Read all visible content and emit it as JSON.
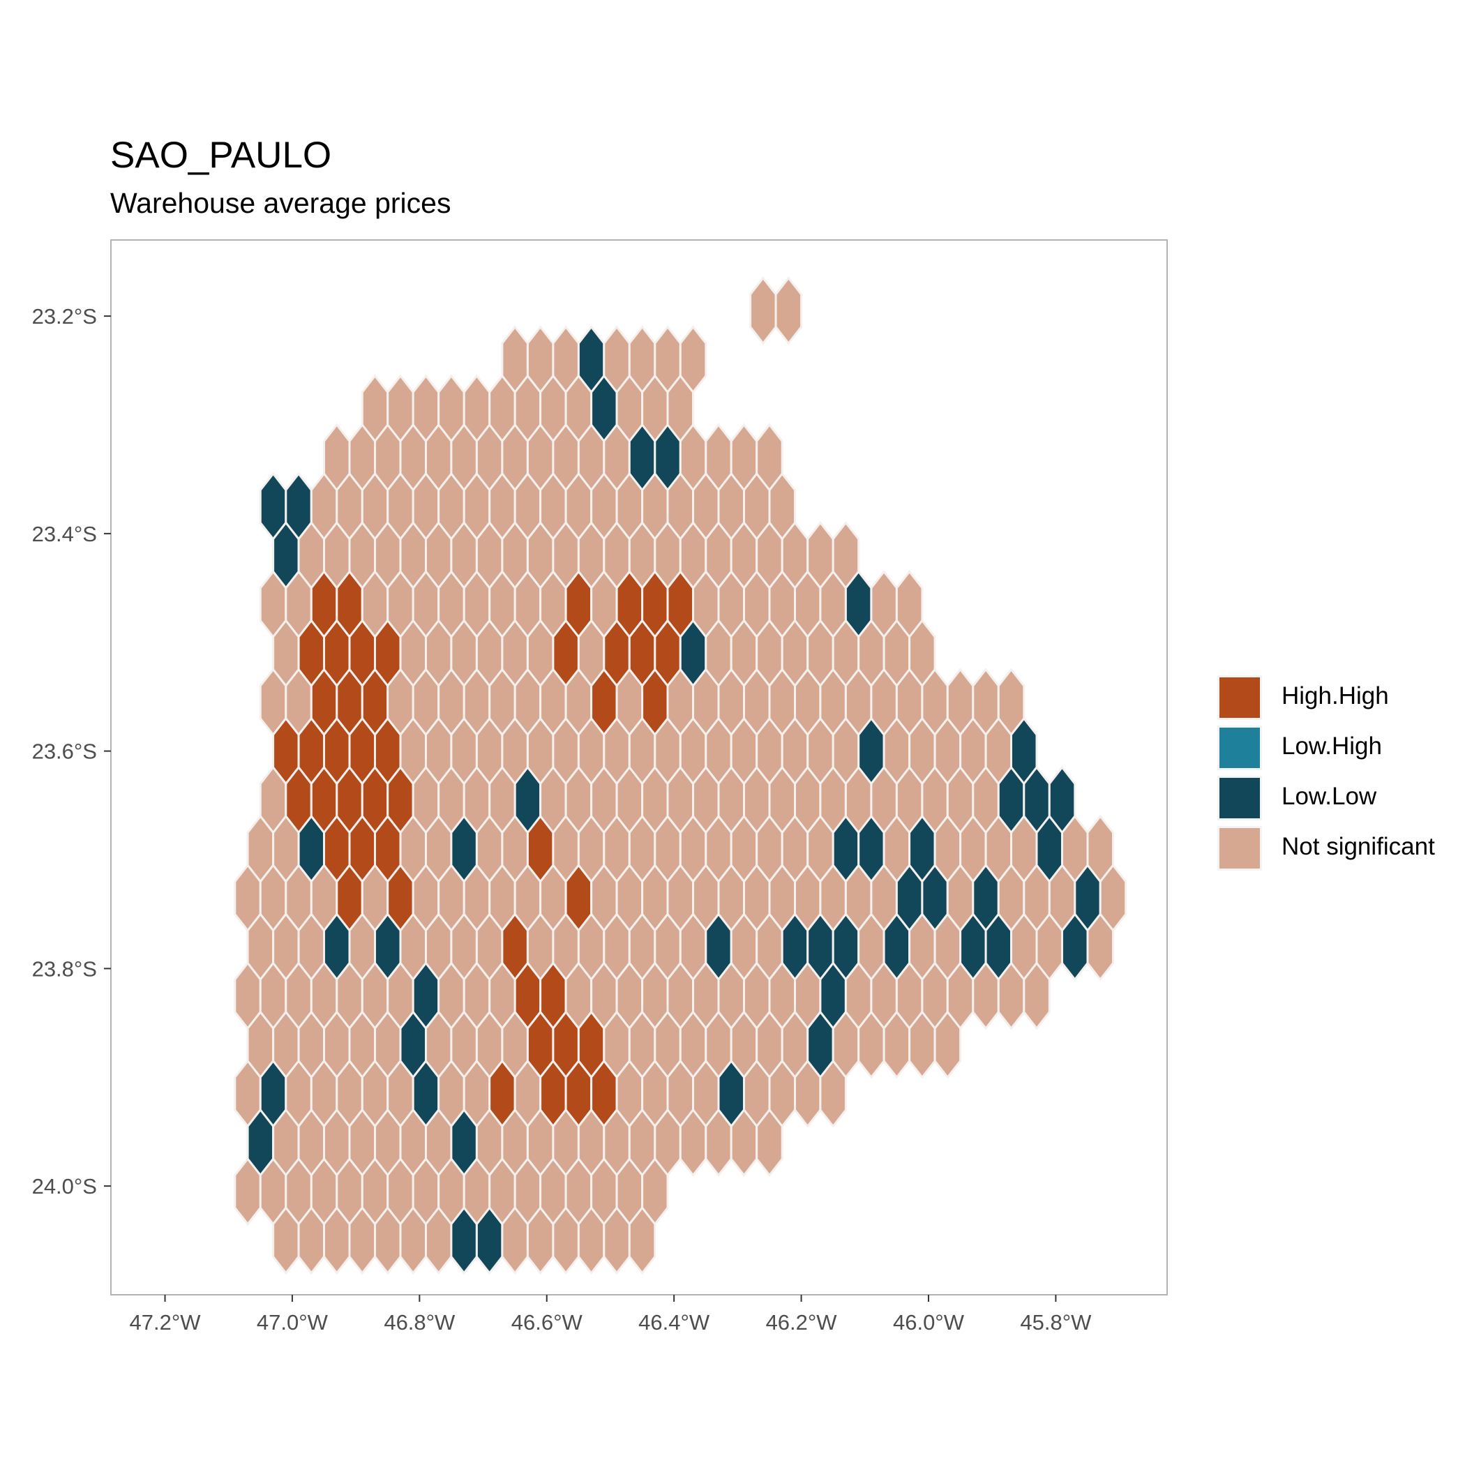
{
  "figure": {
    "title": "SAO_PAULO",
    "subtitle": "Warehouse average prices"
  },
  "chart_data": {
    "type": "hexbin-map",
    "x_axis": {
      "range": [
        -47.285,
        -45.625
      ],
      "ticks": [
        -47.2,
        -47.0,
        -46.8,
        -46.6,
        -46.4,
        -46.2,
        -46.0,
        -45.8
      ],
      "tick_labels": [
        "47.2°W",
        "47.0°W",
        "46.8°W",
        "46.6°W",
        "46.4°W",
        "46.2°W",
        "46.0°W",
        "45.8°W"
      ]
    },
    "y_axis": {
      "range": [
        -24.1,
        -23.13
      ],
      "ticks": [
        -23.2,
        -23.4,
        -23.6,
        -23.8,
        -24.0
      ],
      "tick_labels": [
        "23.2°S",
        "23.4°S",
        "23.6°S",
        "23.8°S",
        "24.0°S"
      ]
    },
    "grid": false,
    "legend": {
      "position": "right",
      "entries": [
        {
          "label": "High.High",
          "color": "#b34a1a"
        },
        {
          "label": "Low.High",
          "color": "#1f809c"
        },
        {
          "label": "Low.Low",
          "color": "#12475a"
        },
        {
          "label": "Not significant",
          "color": "#d6a891"
        }
      ]
    },
    "hex_grid": {
      "lon_step": 0.04,
      "lat_step": 0.045,
      "odd_row_lon_offset": 0.02,
      "rows": [
        {
          "lat": -23.195,
          "start_lon": -46.26,
          "classes": "NN"
        },
        {
          "lat": -23.24,
          "start_lon": -46.65,
          "classes": "NNNLNNNN"
        },
        {
          "lat": -23.285,
          "start_lon": -46.87,
          "classes": "NNNNNNNNNLNNN"
        },
        {
          "lat": -23.33,
          "start_lon": -46.93,
          "classes": "NNNNNNNNNNNNLLNNNN"
        },
        {
          "lat": -23.375,
          "start_lon": -47.03,
          "classes": "LLNNNNNNNNNNNNNNNNNNN"
        },
        {
          "lat": -23.42,
          "start_lon": -47.01,
          "classes": "LNNNNNNNNNNNNNNNNNNNNNN"
        },
        {
          "lat": -23.465,
          "start_lon": -47.03,
          "classes": "NNHHNNNNNNNNHNHHHNNNNNNLNN"
        },
        {
          "lat": -23.51,
          "start_lon": -47.01,
          "classes": "NHHHHNNNNNNHNHHHLNNNNNNNNN"
        },
        {
          "lat": -23.555,
          "start_lon": -47.03,
          "classes": "NNHHHNNNNNNNNHNHNNNNNNNNNNNNNN"
        },
        {
          "lat": -23.6,
          "start_lon": -47.01,
          "classes": "HHHHHNNNNNNNNNNNNNNNNNNLNNNNNL"
        },
        {
          "lat": -23.645,
          "start_lon": -47.03,
          "classes": "NHHHHHNNNNLNNNNNNNNNNNNNNNNNNLLL"
        },
        {
          "lat": -23.69,
          "start_lon": -47.05,
          "classes": "NNLHHHNNLNNHNNNNNNNNNNNLLNLNNNNLNN"
        },
        {
          "lat": -23.735,
          "start_lon": -47.07,
          "classes": "NNNNHNHNNNNNNHNNNNNNNNNNNNLLNLNNNLN"
        },
        {
          "lat": -23.78,
          "start_lon": -47.05,
          "classes": "NNNLNLNNNNHNNNNNNNLNNLLLNLNNLLNNLN"
        },
        {
          "lat": -23.825,
          "start_lon": -47.07,
          "classes": "NNNNNNNLNNNHHNNNNNNNNNNLNNNNNNNN"
        },
        {
          "lat": -23.87,
          "start_lon": -47.05,
          "classes": "NNNNNNLNNNNHHHNNNNNNNNLNNNNN"
        },
        {
          "lat": -23.915,
          "start_lon": -47.07,
          "classes": "NLNNNNNLNNHNHHHNNNNLNNNN"
        },
        {
          "lat": -23.96,
          "start_lon": -47.05,
          "classes": "LNNNNNNNLNNNNNNNNNNNN"
        },
        {
          "lat": -24.005,
          "start_lon": -47.07,
          "classes": "NNNNNNNNNNNNNNNNN"
        },
        {
          "lat": -24.05,
          "start_lon": -47.01,
          "classes": "NNNNNNNLLNNNNNN"
        }
      ],
      "class_codes": {
        "H": "High.High",
        "A": "Low.High",
        "L": "Low.Low",
        "N": "Not significant"
      }
    }
  }
}
